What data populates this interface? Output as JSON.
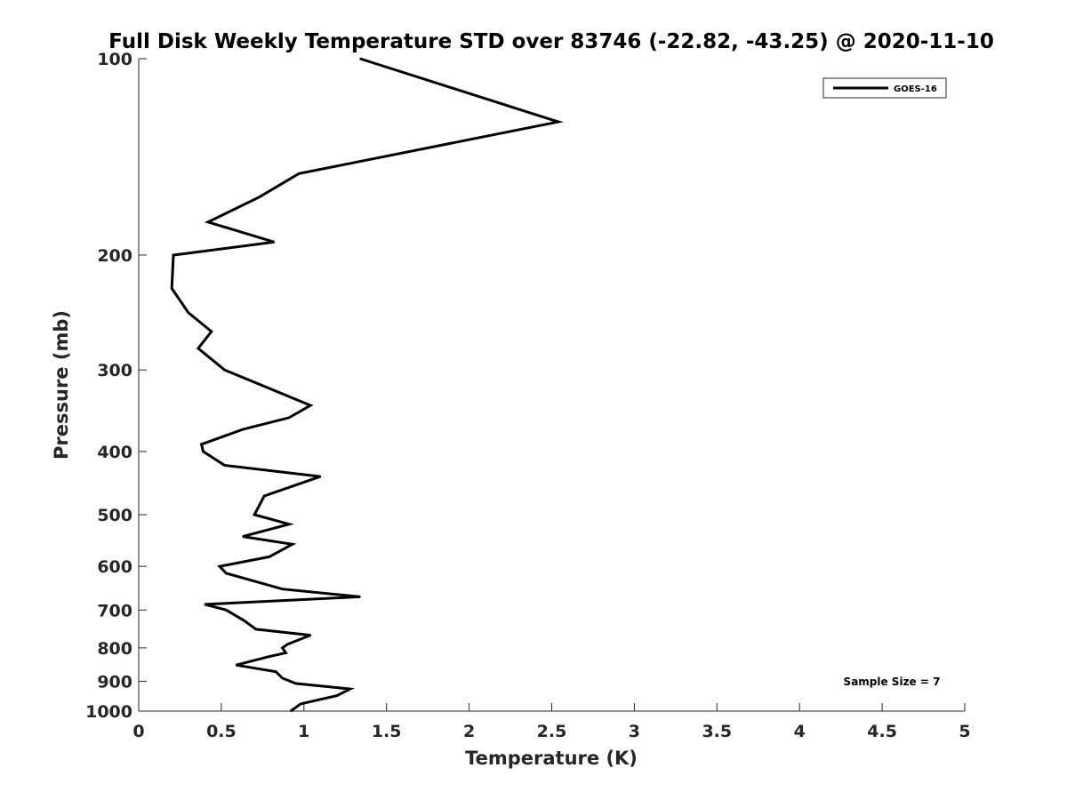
{
  "chart_data": {
    "type": "line",
    "title": "Full Disk Weekly Temperature STD over 83746 (-22.82, -43.25) @ 2020-11-10",
    "xlabel": "Temperature (K)",
    "ylabel": "Pressure (mb)",
    "xlim": [
      0,
      5
    ],
    "ylim": [
      100,
      1000
    ],
    "y_scale": "log",
    "y_reversed": true,
    "x_ticks": [
      0,
      0.5,
      1,
      1.5,
      2,
      2.5,
      3,
      3.5,
      4,
      4.5,
      5
    ],
    "x_tick_labels": [
      "0",
      "0.5",
      "1",
      "1.5",
      "2",
      "2.5",
      "3",
      "3.5",
      "4",
      "4.5",
      "5"
    ],
    "y_ticks": [
      100,
      200,
      300,
      400,
      500,
      600,
      700,
      800,
      900,
      1000
    ],
    "y_tick_labels": [
      "100",
      "200",
      "300",
      "400",
      "500",
      "600",
      "700",
      "800",
      "900",
      "1000"
    ],
    "grid": false,
    "legend_position": "top-right",
    "annotation": "Sample Size = 7",
    "series": [
      {
        "name": "GOES-16",
        "color": "#000000",
        "points": [
          [
            1.34,
            100
          ],
          [
            2.54,
            125
          ],
          [
            0.97,
            150
          ],
          [
            0.73,
            163
          ],
          [
            0.42,
            178
          ],
          [
            0.82,
            191
          ],
          [
            0.21,
            200
          ],
          [
            0.2,
            225
          ],
          [
            0.3,
            245
          ],
          [
            0.44,
            262
          ],
          [
            0.36,
            278
          ],
          [
            0.52,
            300
          ],
          [
            1.04,
            340
          ],
          [
            0.91,
            355
          ],
          [
            0.63,
            370
          ],
          [
            0.38,
            390
          ],
          [
            0.39,
            400
          ],
          [
            0.52,
            420
          ],
          [
            1.1,
            437
          ],
          [
            0.76,
            468
          ],
          [
            0.7,
            500
          ],
          [
            0.91,
            517
          ],
          [
            0.63,
            540
          ],
          [
            0.93,
            555
          ],
          [
            0.79,
            580
          ],
          [
            0.49,
            600
          ],
          [
            0.53,
            615
          ],
          [
            0.87,
            650
          ],
          [
            1.34,
            668
          ],
          [
            0.4,
            686
          ],
          [
            0.53,
            700
          ],
          [
            0.64,
            727
          ],
          [
            0.71,
            749
          ],
          [
            1.04,
            765
          ],
          [
            0.9,
            790
          ],
          [
            0.87,
            800
          ],
          [
            0.89,
            814
          ],
          [
            0.78,
            826
          ],
          [
            0.59,
            850
          ],
          [
            0.83,
            870
          ],
          [
            0.87,
            890
          ],
          [
            0.95,
            907
          ],
          [
            1.28,
            925
          ],
          [
            1.2,
            947
          ],
          [
            0.98,
            975
          ],
          [
            0.92,
            1000
          ]
        ]
      }
    ]
  }
}
